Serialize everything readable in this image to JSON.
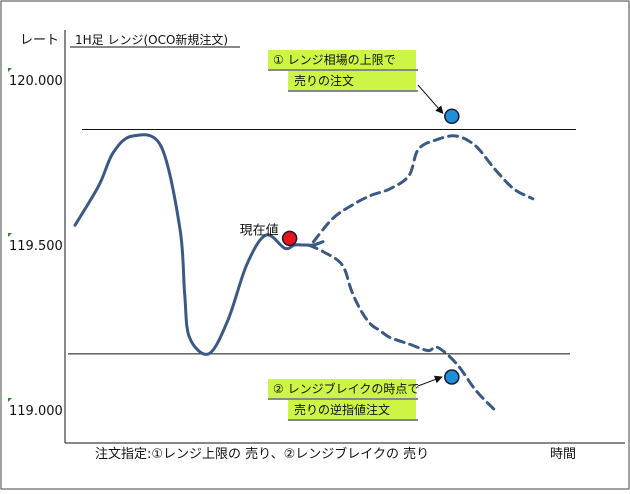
{
  "chart_data": {
    "type": "line",
    "title": "1H足 レンジ(OCO新規注文)",
    "ylabel": "レート",
    "xlabel": "時間",
    "caption": "注文指定:①レンジ上限の 売り、②レンジブレイクの 売り",
    "ylim": [
      119.0,
      120.0
    ],
    "y_ticks": [
      {
        "value": 120.0,
        "label": "120.000"
      },
      {
        "value": 119.5,
        "label": "119.500"
      },
      {
        "value": 119.0,
        "label": "119.000"
      }
    ],
    "x_range": [
      0,
      100
    ],
    "current_label": "現在値",
    "reference_lines": [
      {
        "name": "range-upper",
        "value": 119.85
      },
      {
        "name": "range-lower",
        "value": 119.17
      }
    ],
    "series": [
      {
        "style": "solid",
        "x": [
          0,
          5,
          8,
          12,
          18,
          22,
          23,
          24,
          28,
          32,
          36,
          40,
          44,
          46,
          48,
          50,
          52
        ],
        "y": [
          119.56,
          119.68,
          119.78,
          119.83,
          119.8,
          119.55,
          119.35,
          119.22,
          119.17,
          119.27,
          119.44,
          119.53,
          119.49,
          119.5,
          119.5,
          119.5,
          119.51
        ]
      },
      {
        "style": "dashed",
        "x": [
          50,
          54,
          58,
          62,
          66,
          70,
          72,
          76,
          80,
          84,
          88,
          92,
          96
        ],
        "y": [
          119.51,
          119.58,
          119.62,
          119.65,
          119.67,
          119.71,
          119.79,
          119.82,
          119.83,
          119.8,
          119.73,
          119.67,
          119.64
        ]
      },
      {
        "style": "dashed",
        "x": [
          49,
          52,
          56,
          58,
          60,
          62,
          64,
          66,
          70,
          74,
          76,
          80,
          84,
          88
        ],
        "y": [
          119.5,
          119.48,
          119.44,
          119.36,
          119.3,
          119.26,
          119.24,
          119.22,
          119.2,
          119.18,
          119.19,
          119.14,
          119.06,
          119.0
        ]
      }
    ],
    "points": [
      {
        "role": "current",
        "x": 45,
        "y": 119.52,
        "color": "#e8141c"
      },
      {
        "role": "order-1",
        "x": 79,
        "y": 119.89,
        "color": "#1e90d8"
      },
      {
        "role": "order-2",
        "x": 79,
        "y": 119.1,
        "color": "#1e90d8"
      }
    ],
    "annotations": [
      {
        "lines": [
          "① レンジ相場の上限で",
          "売りの注文"
        ]
      },
      {
        "lines": [
          "② レンジブレイクの時点で",
          "売りの逆指値注文"
        ]
      }
    ],
    "colors": {
      "line": "#3a5a85",
      "callout": "#ccf545"
    }
  }
}
